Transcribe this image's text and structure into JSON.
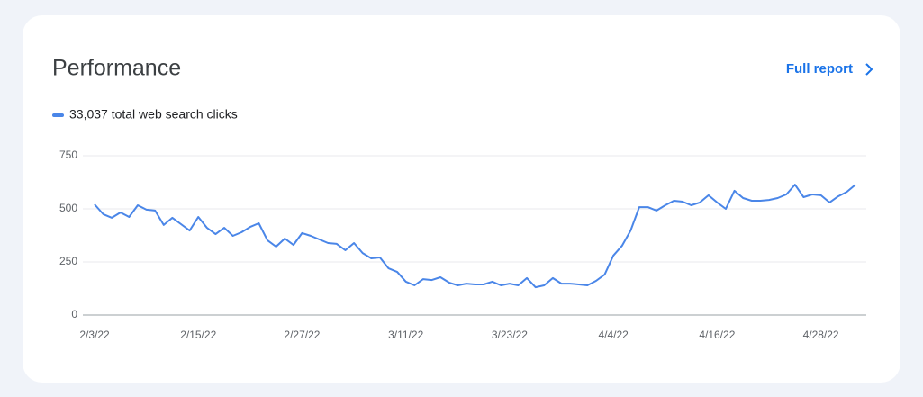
{
  "header": {
    "link": "Full report"
  },
  "chart_data": {
    "type": "line",
    "title": "Performance",
    "categories": [
      "2/3/22",
      null,
      null,
      null,
      null,
      null,
      null,
      null,
      null,
      null,
      null,
      null,
      "2/15/22",
      null,
      null,
      null,
      null,
      null,
      null,
      null,
      null,
      null,
      null,
      null,
      "2/27/22",
      null,
      null,
      null,
      null,
      null,
      null,
      null,
      null,
      null,
      null,
      null,
      "3/11/22",
      null,
      null,
      null,
      null,
      null,
      null,
      null,
      null,
      null,
      null,
      null,
      "3/23/22",
      null,
      null,
      null,
      null,
      null,
      null,
      null,
      null,
      null,
      null,
      null,
      "4/4/22",
      null,
      null,
      null,
      null,
      null,
      null,
      null,
      null,
      null,
      null,
      null,
      "4/16/22",
      null,
      null,
      null,
      null,
      null,
      null,
      null,
      null,
      null,
      null,
      null,
      "4/28/22",
      null,
      null,
      null,
      null
    ],
    "series": [
      {
        "name": "33,037 total web search clicks",
        "color": "#4a86e8",
        "values": [
          521,
          475,
          458,
          483,
          462,
          517,
          496,
          492,
          424,
          458,
          428,
          398,
          462,
          411,
          381,
          411,
          373,
          390,
          415,
          432,
          352,
          322,
          360,
          330,
          386,
          373,
          356,
          339,
          335,
          305,
          339,
          292,
          267,
          271,
          220,
          203,
          157,
          140,
          169,
          165,
          178,
          153,
          140,
          148,
          144,
          144,
          157,
          140,
          148,
          140,
          174,
          131,
          140,
          174,
          148,
          148,
          144,
          140,
          161,
          191,
          280,
          326,
          398,
          508,
          508,
          492,
          517,
          538,
          534,
          517,
          530,
          564,
          530,
          500,
          585,
          551,
          538,
          538,
          542,
          551,
          568,
          614,
          555,
          568,
          564,
          530,
          559,
          580,
          614
        ]
      }
    ],
    "ylim": [
      0,
      750
    ],
    "yticks": [
      0,
      250,
      500,
      750
    ],
    "grid": true
  }
}
